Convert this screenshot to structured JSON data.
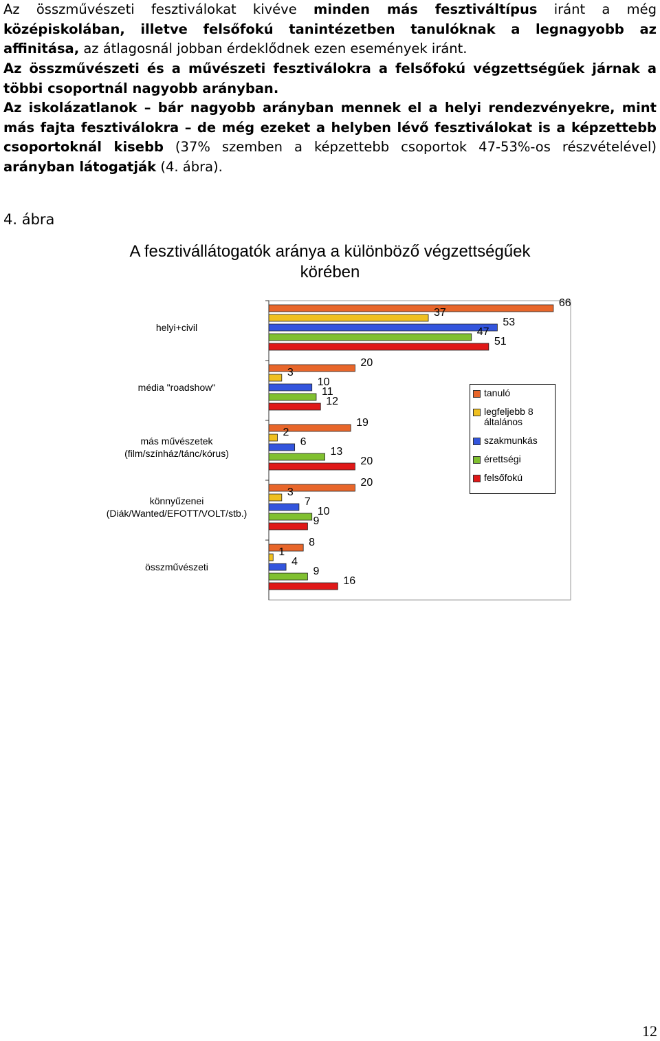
{
  "paragraphs": [
    [
      {
        "text": "Az összművészeti fesztiválokat kivéve ",
        "bold": false
      },
      {
        "text": "minden más fesztiváltípus",
        "bold": true
      },
      {
        "text": " iránt a még ",
        "bold": false
      },
      {
        "text": "középiskolában, illetve felsőfokú tanintézetben tanulóknak a legnagyobb az affinitása,",
        "bold": true
      },
      {
        "text": " az átlagosnál jobban érdeklődnek ezen események iránt.",
        "bold": false
      }
    ],
    [
      {
        "text": "Az összművészeti és a művészeti fesztiválokra a felsőfokú végzettségűek járnak a többi csoportnál nagyobb arányban.",
        "bold": true
      }
    ],
    [
      {
        "text": "Az iskolázatlanok – bár nagyobb arányban mennek el a helyi rendezvényekre, mint más fajta fesztiválokra – de még ezeket a helyben lévő fesztiválokat is a képzettebb csoportoknál kisebb",
        "bold": true
      },
      {
        "text": " (37% szemben a képzettebb csoportok 47-53%-os részvételével) ",
        "bold": false
      },
      {
        "text": "arányban látogatják",
        "bold": true
      },
      {
        "text": " (4. ábra).",
        "bold": false
      }
    ]
  ],
  "figure_label": "4. ábra",
  "chart_data": {
    "type": "bar",
    "orientation": "horizontal",
    "title": "A fesztivállátogatók aránya a különböző végzettségűek körében",
    "categories": [
      "helyi+civil",
      "média \"roadshow\"",
      "más művészetek (film/színház/tánc/kórus)",
      "könnyűzenei (Diák/Wanted/EFOTT/VOLT/stb.)",
      "összművészeti"
    ],
    "series": [
      {
        "name": "tanuló",
        "color": "#e8662a",
        "values": [
          66,
          20,
          19,
          20,
          8
        ]
      },
      {
        "name": "legfeljebb 8 általános",
        "color": "#f0c020",
        "values": [
          37,
          3,
          2,
          3,
          1
        ]
      },
      {
        "name": "szakmunkás",
        "color": "#3355dd",
        "values": [
          53,
          10,
          6,
          7,
          4
        ]
      },
      {
        "name": "érettségi",
        "color": "#80c030",
        "values": [
          47,
          11,
          13,
          10,
          9
        ]
      },
      {
        "name": "felsőfokú",
        "color": "#e01818",
        "values": [
          51,
          12,
          20,
          9,
          16
        ]
      }
    ],
    "xlim": [
      0,
      70
    ]
  },
  "page_number": "12"
}
